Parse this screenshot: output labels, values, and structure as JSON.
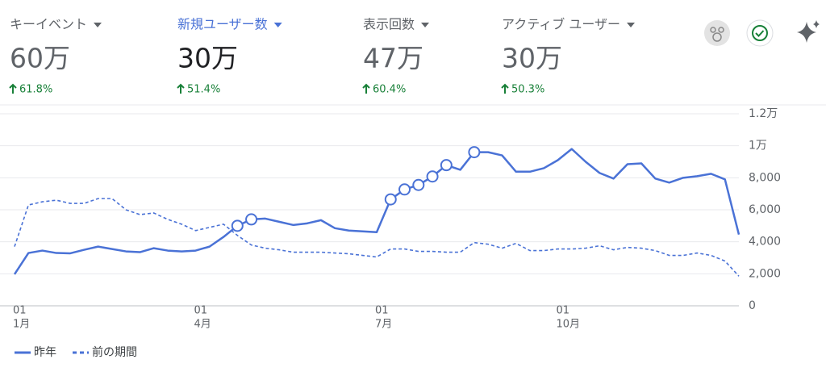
{
  "metrics": [
    {
      "title": "キーイベント",
      "value": "60万",
      "change": "61.8%",
      "active": false
    },
    {
      "title": "新規ユーザー数",
      "value": "30万",
      "change": "51.4%",
      "active": true
    },
    {
      "title": "表示回数",
      "value": "47万",
      "change": "60.4%",
      "active": false
    },
    {
      "title": "アクティブ ユーザー",
      "value": "30万",
      "change": "50.3%",
      "active": false
    }
  ],
  "chart_data": {
    "type": "line",
    "categories": [
      null,
      null,
      null,
      null,
      null,
      null,
      null,
      null,
      null,
      null,
      null,
      null,
      null,
      null,
      null,
      null,
      null,
      null,
      null,
      null,
      null,
      null,
      null,
      null,
      null,
      null,
      null,
      null,
      null,
      null,
      null,
      null,
      null,
      null,
      null,
      null,
      null,
      null,
      null,
      null,
      null,
      null,
      null,
      null,
      null,
      null,
      null,
      null,
      null,
      null,
      null,
      null,
      null
    ],
    "xticks": [
      {
        "value": 0,
        "label": "01",
        "sublabel": "1月"
      },
      {
        "value": 13,
        "label": "01",
        "sublabel": "4月"
      },
      {
        "value": 26,
        "label": "01",
        "sublabel": "7月"
      },
      {
        "value": 39,
        "label": "01",
        "sublabel": "10月"
      }
    ],
    "series": [
      {
        "name": "昨年",
        "color": "#4a72d6",
        "dashed": false,
        "highlight": [
          16,
          17,
          27,
          28,
          29,
          30,
          31,
          33
        ],
        "values": [
          1970,
          3300,
          3450,
          3300,
          3280,
          3500,
          3700,
          3550,
          3400,
          3350,
          3600,
          3450,
          3400,
          3450,
          3700,
          4300,
          5000,
          5400,
          5450,
          5250,
          5050,
          5150,
          5350,
          4850,
          4700,
          4650,
          4600,
          6650,
          7270,
          7550,
          8080,
          8790,
          8500,
          9600,
          9600,
          9400,
          8380,
          8380,
          8600,
          9100,
          9800,
          9000,
          8300,
          7950,
          8850,
          8900,
          7950,
          7700,
          8000,
          8100,
          8250,
          7900,
          4450
        ]
      },
      {
        "name": "前の期間",
        "color": "#4a72d6",
        "dashed": true,
        "values": [
          3700,
          6300,
          6500,
          6600,
          6400,
          6400,
          6700,
          6700,
          6000,
          5700,
          5800,
          5400,
          5100,
          4700,
          4900,
          5100,
          4400,
          3800,
          3600,
          3500,
          3350,
          3350,
          3350,
          3300,
          3250,
          3150,
          3050,
          3550,
          3550,
          3400,
          3400,
          3350,
          3350,
          3950,
          3850,
          3600,
          3900,
          3450,
          3450,
          3550,
          3550,
          3600,
          3750,
          3500,
          3650,
          3600,
          3450,
          3150,
          3150,
          3300,
          3150,
          2800,
          1850
        ]
      }
    ],
    "ylim": [
      0,
      12000
    ],
    "yticks": [
      0,
      {
        "value": 2000,
        "label": "2,000"
      },
      {
        "value": 4000,
        "label": "4,000"
      },
      {
        "value": 6000,
        "label": "6,000"
      },
      {
        "value": 8000,
        "label": "8,000"
      },
      {
        "value": 10000,
        "label": "1万"
      },
      {
        "value": 12000,
        "label": "1.2万"
      }
    ],
    "grid": true
  }
}
